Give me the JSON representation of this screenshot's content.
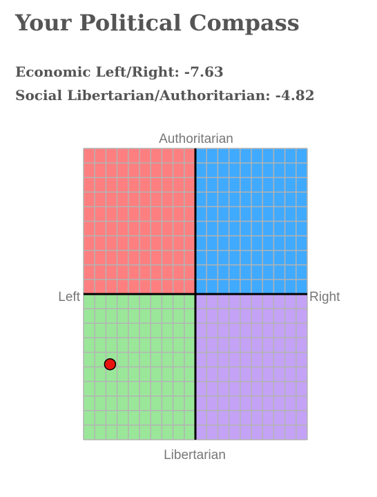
{
  "header": {
    "title": "Your Political Compass"
  },
  "scores": {
    "economic_label": "Economic Left/Right:",
    "economic_value": -7.63,
    "economic_text": "Economic Left/Right: -7.63",
    "social_label": "Social Libertarian/Authoritarian:",
    "social_value": -4.82,
    "social_text": "Social Libertarian/Authoritarian: -4.82"
  },
  "compass": {
    "labels": {
      "top": "Authoritarian",
      "bottom": "Libertarian",
      "left": "Left",
      "right": "Right"
    },
    "range": [
      -10,
      10
    ],
    "grid_divisions": 20,
    "marker": {
      "x": -7.63,
      "y": -4.82,
      "color": "#e8140f"
    },
    "quadrant_colors": {
      "authoritarian_left": "#fd7f80",
      "authoritarian_right": "#40aafe",
      "libertarian_left": "#9ae79a",
      "libertarian_right": "#c4a2f5"
    },
    "grid_line_color": "#b3b3b3",
    "axis_color": "#000000"
  }
}
